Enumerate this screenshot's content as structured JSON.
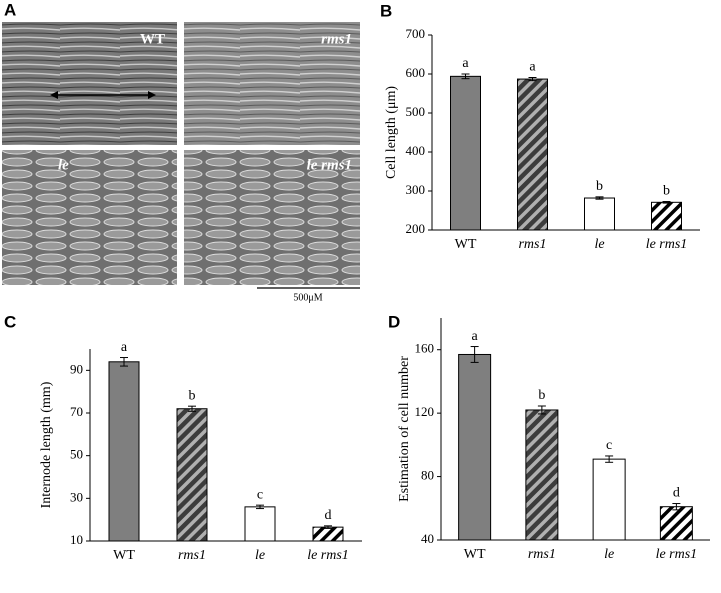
{
  "panel_labels": [
    "A",
    "B",
    "C",
    "D"
  ],
  "micrographs": {
    "labels": [
      "WT",
      "rms1",
      "le",
      "le rms1"
    ],
    "scale_bar": "500μM"
  },
  "chart_data": [
    {
      "type": "bar",
      "y_label": "Cell length (μm)",
      "categories": [
        "WT",
        "rms1",
        "le",
        "le rms1"
      ],
      "italic_categories": [
        false,
        true,
        true,
        true
      ],
      "values": [
        594,
        587,
        282,
        271
      ],
      "errors": [
        6,
        4,
        3,
        2
      ],
      "annotations": [
        "a",
        "a",
        "b",
        "b"
      ],
      "colors": [
        "#7f7f7f",
        "#3c3c3c",
        "#ffffff",
        "#ffffff"
      ],
      "hatch": [
        false,
        true,
        false,
        true
      ],
      "ylim": [
        200,
        700
      ],
      "yticks": [
        200,
        300,
        400,
        500,
        600,
        700
      ]
    },
    {
      "type": "bar",
      "y_label": "Internode length (mm)",
      "categories": [
        "WT",
        "rms1",
        "le",
        "le rms1"
      ],
      "italic_categories": [
        false,
        true,
        true,
        true
      ],
      "values": [
        94,
        72,
        26,
        16.5
      ],
      "errors": [
        2,
        1.2,
        0.8,
        0.6
      ],
      "annotations": [
        "a",
        "b",
        "c",
        "d"
      ],
      "colors": [
        "#7f7f7f",
        "#3c3c3c",
        "#ffffff",
        "#ffffff"
      ],
      "hatch": [
        false,
        true,
        false,
        true
      ],
      "ylim": [
        10,
        100
      ],
      "yticks": [
        10,
        30,
        50,
        70,
        90
      ]
    },
    {
      "type": "bar",
      "y_label": "Estimation of cell number",
      "categories": [
        "WT",
        "rms1",
        "le",
        "le rms1"
      ],
      "italic_categories": [
        false,
        true,
        true,
        true
      ],
      "values": [
        157,
        122,
        91,
        61
      ],
      "errors": [
        5,
        2.5,
        2,
        2
      ],
      "annotations": [
        "a",
        "b",
        "c",
        "d"
      ],
      "colors": [
        "#7f7f7f",
        "#3c3c3c",
        "#ffffff",
        "#ffffff"
      ],
      "hatch": [
        false,
        true,
        false,
        true
      ],
      "ylim": [
        40,
        180
      ],
      "yticks": [
        40,
        80,
        120,
        160
      ]
    }
  ]
}
